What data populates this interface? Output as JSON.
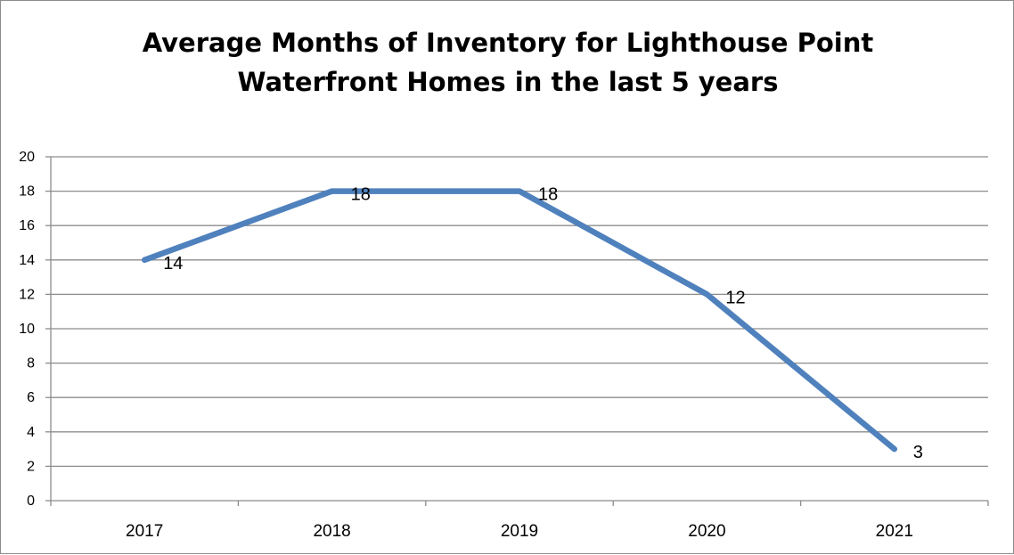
{
  "chart_data": {
    "type": "line",
    "title": "Average Months of Inventory for Lighthouse Point Waterfront Homes in the last 5 years",
    "title_lines": [
      "Average Months of Inventory for Lighthouse Point",
      "Waterfront Homes in the last 5 years"
    ],
    "categories": [
      "2017",
      "2018",
      "2019",
      "2020",
      "2021"
    ],
    "series": [
      {
        "values": [
          14,
          18,
          18,
          12,
          3
        ],
        "color": "#4f81bd"
      }
    ],
    "data_labels": [
      "14",
      "18",
      "18",
      "12",
      "3"
    ],
    "y_ticks": [
      "0",
      "2",
      "4",
      "6",
      "8",
      "10",
      "12",
      "14",
      "16",
      "18",
      "20"
    ],
    "ylim": [
      0,
      20
    ],
    "grid": true,
    "legend": "none",
    "gridline_color": "#8c8c8c"
  }
}
